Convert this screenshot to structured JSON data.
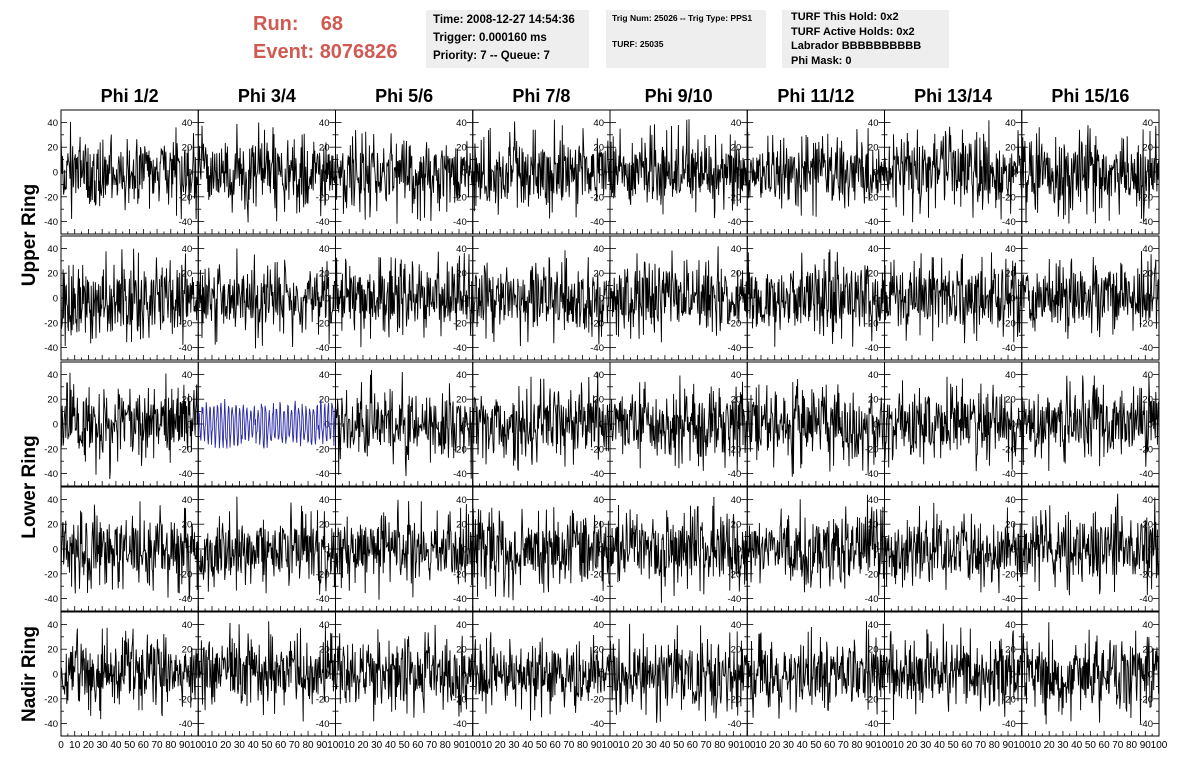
{
  "header": {
    "run_label": "Run:",
    "run_value": "68",
    "event_label": "Event:",
    "event_value": "8076826",
    "info_box_1": {
      "time": "Time: 2008-12-27 14:54:36",
      "trigger": "Trigger: 0.000160 ms",
      "priority": "Priority: 7 -- Queue: 7"
    },
    "info_box_2": {
      "trig": "Trig Num: 25026 -- Trig Type: PPS1",
      "turf": "TURF: 25035"
    },
    "info_box_3": {
      "this_hold": "TURF This Hold: 0x2",
      "active_holds": "TURF Active Holds: 0x2",
      "labrador": "Labrador BBBBBBBBBB",
      "phi_mask": "Phi Mask: 0"
    },
    "accent_color": "#d05a52",
    "info_bg_color": "#eeeeee"
  },
  "chart_data": {
    "type": "line",
    "columns": [
      "Phi 1/2",
      "Phi 3/4",
      "Phi 5/6",
      "Phi 7/8",
      "Phi 9/10",
      "Phi 11/12",
      "Phi 13/14",
      "Phi 15/16"
    ],
    "ring_labels": [
      "Upper Ring",
      "Lower Ring",
      "Nadir Ring"
    ],
    "rows_per_ring": [
      2,
      2,
      1
    ],
    "xlim": [
      0,
      100
    ],
    "ylim": [
      -50,
      50
    ],
    "x_tick_labels": [
      "0",
      "10",
      "20",
      "30",
      "40",
      "50",
      "60",
      "70",
      "80",
      "90",
      "100"
    ],
    "y_tick_labels": [
      "-40",
      "-20",
      "0",
      "20",
      "40"
    ],
    "waveform_color": "#000000",
    "highlight_color": "#2a2aa8",
    "highlight_panel": {
      "row": 2,
      "col": 1
    },
    "samples_per_trace": 260,
    "amplitude": 45
  }
}
